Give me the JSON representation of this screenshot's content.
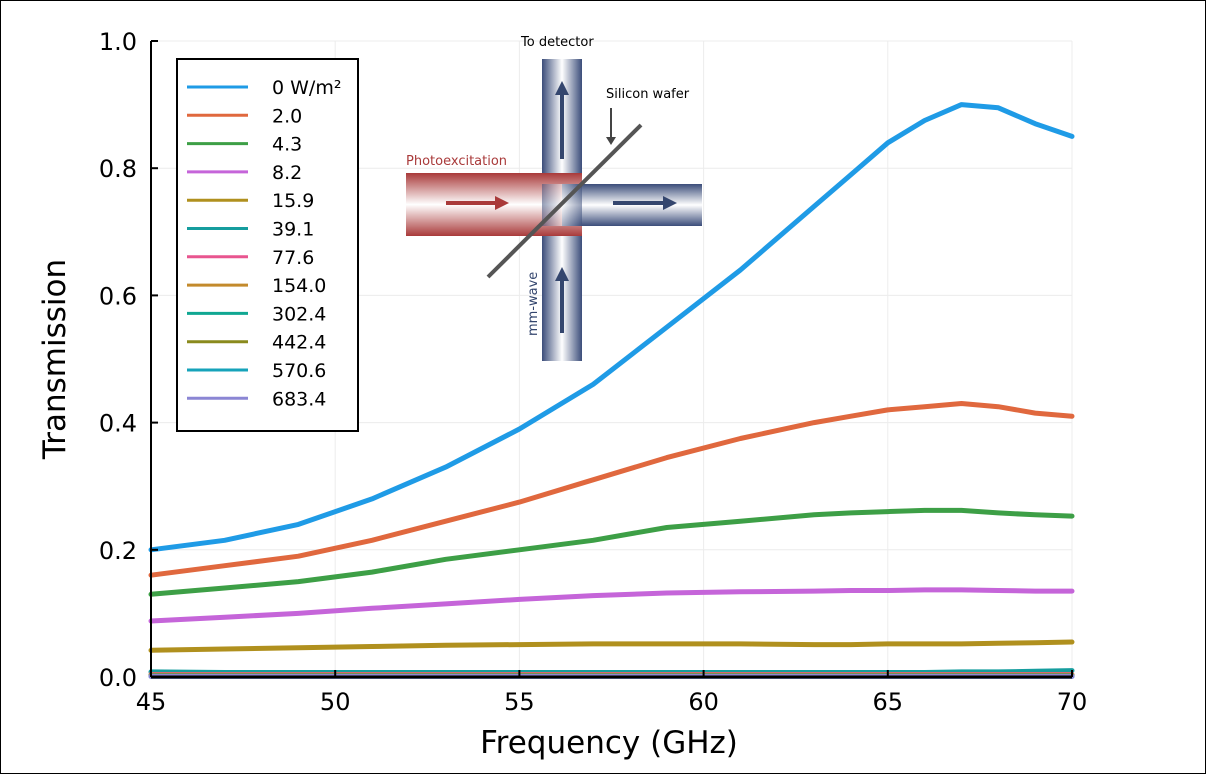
{
  "chart_data": {
    "type": "line",
    "title": "",
    "xlabel": "Frequency (GHz)",
    "ylabel": "Transmission",
    "xlim": [
      45,
      70
    ],
    "ylim": [
      0,
      1.0
    ],
    "xticks": [
      45,
      50,
      55,
      60,
      65,
      70
    ],
    "yticks": [
      0.0,
      0.2,
      0.4,
      0.6,
      0.8,
      1.0
    ],
    "xtick_labels": [
      "45",
      "50",
      "55",
      "60",
      "65",
      "70"
    ],
    "ytick_labels": [
      "0.0",
      "0.2",
      "0.4",
      "0.6",
      "0.8",
      "1.0"
    ],
    "grid": true,
    "legend": {
      "placement": "top-left"
    },
    "x": [
      45,
      47,
      49,
      51,
      53,
      55,
      57,
      59,
      61,
      63,
      64,
      65,
      66,
      67,
      68,
      69,
      70
    ],
    "series": [
      {
        "name": "0 W/m²",
        "color": "#1f9be6",
        "values": [
          0.2,
          0.215,
          0.24,
          0.28,
          0.33,
          0.39,
          0.46,
          0.55,
          0.64,
          0.74,
          0.79,
          0.84,
          0.875,
          0.9,
          0.895,
          0.87,
          0.85
        ]
      },
      {
        "name": "2.0",
        "color": "#e0683e",
        "values": [
          0.16,
          0.175,
          0.19,
          0.215,
          0.245,
          0.275,
          0.31,
          0.345,
          0.375,
          0.4,
          0.41,
          0.42,
          0.425,
          0.43,
          0.425,
          0.415,
          0.41
        ]
      },
      {
        "name": "4.3",
        "color": "#3d9f46",
        "values": [
          0.13,
          0.14,
          0.15,
          0.165,
          0.185,
          0.2,
          0.215,
          0.235,
          0.245,
          0.255,
          0.258,
          0.26,
          0.262,
          0.262,
          0.258,
          0.255,
          0.253
        ]
      },
      {
        "name": "8.2",
        "color": "#c565d9",
        "values": [
          0.088,
          0.094,
          0.1,
          0.108,
          0.115,
          0.122,
          0.128,
          0.132,
          0.134,
          0.135,
          0.136,
          0.136,
          0.137,
          0.137,
          0.136,
          0.135,
          0.135
        ]
      },
      {
        "name": "15.9",
        "color": "#b0901e",
        "values": [
          0.042,
          0.044,
          0.046,
          0.048,
          0.05,
          0.051,
          0.052,
          0.052,
          0.052,
          0.051,
          0.051,
          0.052,
          0.052,
          0.052,
          0.053,
          0.054,
          0.055
        ]
      },
      {
        "name": "39.1",
        "color": "#159d9e",
        "values": [
          0.008,
          0.007,
          0.007,
          0.007,
          0.007,
          0.007,
          0.007,
          0.007,
          0.007,
          0.007,
          0.007,
          0.007,
          0.007,
          0.008,
          0.008,
          0.009,
          0.01
        ]
      },
      {
        "name": "77.6",
        "color": "#e8558f",
        "values": [
          0.004,
          0.004,
          0.004,
          0.004,
          0.004,
          0.004,
          0.004,
          0.004,
          0.004,
          0.004,
          0.004,
          0.004,
          0.004,
          0.004,
          0.004,
          0.004,
          0.004
        ]
      },
      {
        "name": "154.0",
        "color": "#c38a2c",
        "values": [
          0.003,
          0.003,
          0.003,
          0.003,
          0.003,
          0.003,
          0.003,
          0.003,
          0.003,
          0.003,
          0.003,
          0.003,
          0.003,
          0.003,
          0.003,
          0.003,
          0.003
        ]
      },
      {
        "name": "302.4",
        "color": "#10a792",
        "values": [
          0.002,
          0.002,
          0.002,
          0.002,
          0.002,
          0.002,
          0.002,
          0.002,
          0.002,
          0.002,
          0.002,
          0.002,
          0.002,
          0.002,
          0.002,
          0.002,
          0.002
        ]
      },
      {
        "name": "442.4",
        "color": "#8a8a1d",
        "values": [
          0.002,
          0.002,
          0.002,
          0.002,
          0.002,
          0.002,
          0.002,
          0.002,
          0.002,
          0.002,
          0.002,
          0.002,
          0.002,
          0.002,
          0.002,
          0.002,
          0.002
        ]
      },
      {
        "name": "570.6",
        "color": "#16a3ba",
        "values": [
          0.001,
          0.001,
          0.001,
          0.001,
          0.001,
          0.001,
          0.001,
          0.001,
          0.001,
          0.001,
          0.001,
          0.001,
          0.001,
          0.001,
          0.001,
          0.001,
          0.001
        ]
      },
      {
        "name": "683.4",
        "color": "#8b86d4",
        "values": [
          0.001,
          0.001,
          0.001,
          0.001,
          0.001,
          0.001,
          0.001,
          0.001,
          0.001,
          0.001,
          0.001,
          0.001,
          0.001,
          0.001,
          0.001,
          0.001,
          0.001
        ]
      }
    ]
  },
  "inset": {
    "to_detector": "To detector",
    "silicon_wafer": "Silicon wafer",
    "photoexcitation": "Photoexcitation",
    "mm_wave": "mm-wave",
    "laser_color": "#a93a3a",
    "mm_wave_color": "#34466e"
  }
}
